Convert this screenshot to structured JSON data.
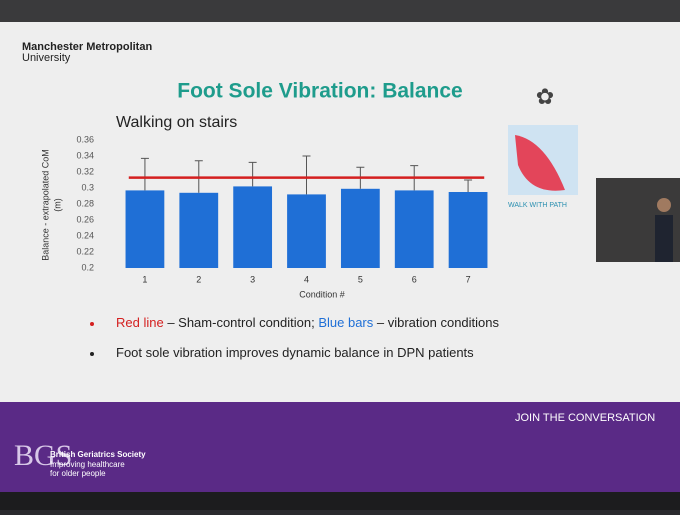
{
  "header": {
    "university_line1": "Manchester Metropolitan",
    "university_line2": "University",
    "title": "Foot Sole Vibration: Balance",
    "image_caption": "WALK WITH PATH"
  },
  "chart_data": {
    "type": "bar",
    "title": "Walking on stairs",
    "y_label_line1": "Balance - extrapolated CoM",
    "y_label_line2": "(m)",
    "x_label": "Condition #",
    "categories": [
      "1",
      "2",
      "3",
      "4",
      "5",
      "6",
      "7"
    ],
    "values": [
      0.297,
      0.294,
      0.302,
      0.292,
      0.299,
      0.297,
      0.295
    ],
    "errors": [
      0.04,
      0.04,
      0.03,
      0.048,
      0.027,
      0.031,
      0.015
    ],
    "color": "#1f6fd6",
    "reference_line": {
      "value": 0.313,
      "color": "#d42020"
    },
    "ylim": [
      0.2,
      0.36
    ],
    "yticks": [
      0.2,
      0.22,
      0.24,
      0.26,
      0.28,
      0.3,
      0.32,
      0.34,
      0.36
    ]
  },
  "bullets": [
    {
      "parts": [
        "Red line",
        " – Sham-control condition; ",
        "Blue bars",
        " – vibration conditions"
      ]
    },
    {
      "parts": [
        "Foot sole vibration improves dynamic balance in DPN patients"
      ]
    }
  ],
  "footer": {
    "join": "JOIN THE CONVERSATION",
    "logo": "BGS",
    "org": "British Geriatrics Society",
    "tagline1": "Improving healthcare",
    "tagline2": "for older people"
  }
}
